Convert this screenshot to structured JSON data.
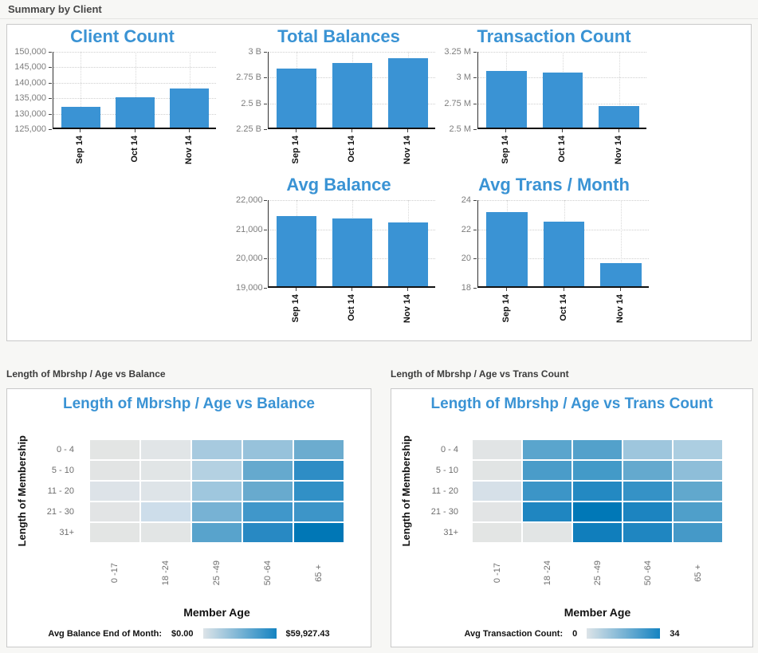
{
  "headers": {
    "summary": "Summary by Client",
    "balance_heatmap": "Length of Mbrshp / Age vs Balance",
    "trans_heatmap": "Length of Mbrshp / Age vs Trans Count"
  },
  "colors": {
    "bar_fill": "#3a93d4",
    "chart_title": "#3a93d4",
    "heat_min": "#e3e5e4",
    "heat_max": "#0077b6",
    "legend_gradient_start": "#dde4e8",
    "legend_gradient_end": "#1583c1"
  },
  "chart_data": [
    {
      "type": "bar",
      "title": "Client Count",
      "categories": [
        "Sep 14",
        "Oct 14",
        "Nov 14"
      ],
      "values": [
        131700,
        134900,
        137600
      ],
      "ylim": [
        125000,
        150000
      ],
      "yticks": [
        {
          "value": 125000,
          "label": "125,000"
        },
        {
          "value": 130000,
          "label": "130,000"
        },
        {
          "value": 135000,
          "label": "135,000"
        },
        {
          "value": 140000,
          "label": "140,000"
        },
        {
          "value": 145000,
          "label": "145,000"
        },
        {
          "value": 150000,
          "label": "150,000"
        }
      ]
    },
    {
      "type": "bar",
      "title": "Total Balances",
      "categories": [
        "Sep 14",
        "Oct 14",
        "Nov 14"
      ],
      "values": [
        2.82,
        2.88,
        2.92
      ],
      "ylim": [
        2.25,
        3
      ],
      "yticks": [
        {
          "value": 2.25,
          "label": "2.25 B"
        },
        {
          "value": 2.5,
          "label": "2.5 B"
        },
        {
          "value": 2.75,
          "label": "2.75 B"
        },
        {
          "value": 3,
          "label": "3 B"
        }
      ]
    },
    {
      "type": "bar",
      "title": "Transaction Count",
      "categories": [
        "Sep 14",
        "Oct 14",
        "Nov 14"
      ],
      "values": [
        3.05,
        3.03,
        2.71
      ],
      "ylim": [
        2.5,
        3.25
      ],
      "yticks": [
        {
          "value": 2.5,
          "label": "2.5 M"
        },
        {
          "value": 2.75,
          "label": "2.75 M"
        },
        {
          "value": 3,
          "label": "3 M"
        },
        {
          "value": 3.25,
          "label": "3.25 M"
        }
      ]
    },
    {
      "type": "bar",
      "title": "Avg Balance",
      "categories": [
        "Sep 14",
        "Oct 14",
        "Nov 14"
      ],
      "values": [
        21400,
        21330,
        21190
      ],
      "ylim": [
        19000,
        22000
      ],
      "yticks": [
        {
          "value": 19000,
          "label": "19,000"
        },
        {
          "value": 20000,
          "label": "20,000"
        },
        {
          "value": 21000,
          "label": "21,000"
        },
        {
          "value": 22000,
          "label": "22,000"
        }
      ]
    },
    {
      "type": "bar",
      "title": "Avg Trans / Month",
      "categories": [
        "Sep 14",
        "Oct 14",
        "Nov 14"
      ],
      "values": [
        23.1,
        22.4,
        19.6
      ],
      "ylim": [
        18,
        24
      ],
      "yticks": [
        {
          "value": 18,
          "label": "18"
        },
        {
          "value": 20,
          "label": "20"
        },
        {
          "value": 22,
          "label": "22"
        },
        {
          "value": 24,
          "label": "24"
        }
      ]
    },
    {
      "type": "heatmap",
      "title": "Length of Mbrshp / Age vs Balance",
      "rows": [
        "0 - 4",
        "5 - 10",
        "11 - 20",
        "21 - 30",
        "31+"
      ],
      "cols": [
        "0 -17",
        "18 -24",
        "25 -49",
        "50 -64",
        "65 +"
      ],
      "values": [
        [
          3000,
          3600,
          21000,
          24000,
          33000
        ],
        [
          3200,
          3400,
          16800,
          34800,
          51000
        ],
        [
          6000,
          5400,
          22800,
          34200,
          50400
        ],
        [
          3200,
          12000,
          31200,
          45000,
          43800
        ],
        [
          3000,
          3100,
          39000,
          49000,
          59927.43
        ]
      ],
      "cell_colors": [
        [
          "#e3e5e4",
          "#e1e5e7",
          "#a7cadf",
          "#97c2db",
          "#6caccf"
        ],
        [
          "#e2e4e4",
          "#e1e5e6",
          "#b4d1e2",
          "#65a9ce",
          "#2e8dc5"
        ],
        [
          "#dde3e8",
          "#dee4e8",
          "#9fc7de",
          "#68aace",
          "#3190c6"
        ],
        [
          "#e2e4e5",
          "#cdddea",
          "#77b2d4",
          "#4097ca",
          "#3d95c8"
        ],
        [
          "#e3e5e4",
          "#e2e5e5",
          "#58a3cc",
          "#2889c3",
          "#0077b6"
        ]
      ],
      "xlabel": "Member Age",
      "ylabel": "Length of Membership",
      "legend": {
        "label": "Avg Balance End of Month:",
        "min": "$0.00",
        "max": "$59,927.43"
      }
    },
    {
      "type": "heatmap",
      "title": "Length of Mbrshp / Age vs Trans Count",
      "rows": [
        "0 - 4",
        "5 - 10",
        "11 - 20",
        "21 - 30",
        "31+"
      ],
      "cols": [
        "0 -17",
        "18 -24",
        "25 -49",
        "50 -64",
        "65 +"
      ],
      "values": [
        [
          2,
          15,
          16,
          9,
          7
        ],
        [
          2,
          18,
          19,
          14,
          10
        ],
        [
          3,
          19,
          23,
          20,
          15
        ],
        [
          2,
          24,
          34,
          25,
          18
        ],
        [
          2,
          2,
          27,
          24,
          19
        ]
      ],
      "cell_colors": [
        [
          "#e1e4e5",
          "#5aa5cd",
          "#53a1cb",
          "#9ec6dd",
          "#accee1"
        ],
        [
          "#e1e4e4",
          "#4a9cc9",
          "#439ac8",
          "#64a9ce",
          "#8ebed9"
        ],
        [
          "#d6e0e8",
          "#3c95c7",
          "#2389c2",
          "#3592c6",
          "#61a8cd"
        ],
        [
          "#e2e4e5",
          "#1f86c1",
          "#0078b7",
          "#1c84c0",
          "#4f9fca"
        ],
        [
          "#e3e5e4",
          "#e2e5e5",
          "#107ebc",
          "#1f86c1",
          "#4599c8"
        ]
      ],
      "xlabel": "Member Age",
      "ylabel": "Length of Membership",
      "legend": {
        "label": "Avg Transaction Count:",
        "min": "0",
        "max": "34"
      }
    }
  ]
}
